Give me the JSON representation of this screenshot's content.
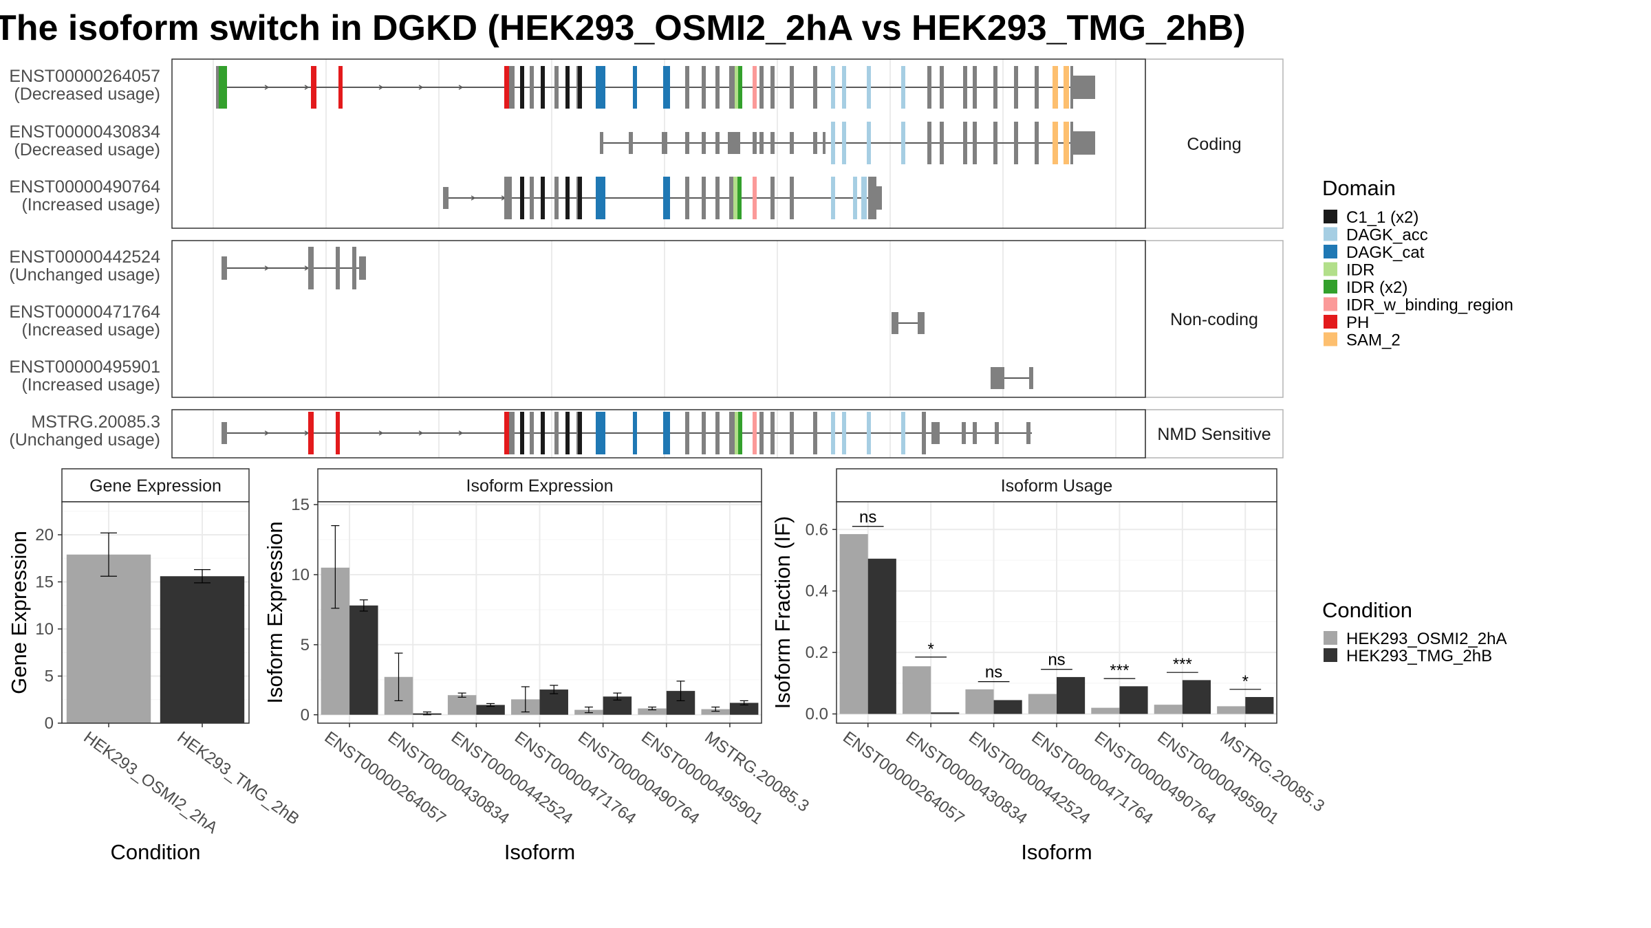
{
  "title": "The isoform switch in DGKD (HEK293_OSMI2_2hA vs HEK293_TMG_2hB)",
  "colors": {
    "C1_1 (x2)": "#1a1a1a",
    "DAGK_acc": "#a6cee3",
    "DAGK_cat": "#1f78b4",
    "IDR": "#b2df8a",
    "IDR (x2)": "#33a02c",
    "IDR_w_binding_region": "#fb9a99",
    "PH": "#e31a1c",
    "SAM_2": "#fdbf6f",
    "exon": "#808080",
    "cond1": "#a6a6a6",
    "cond2": "#333333"
  },
  "transcript_panels": [
    {
      "label": "Coding",
      "rows": [
        {
          "id": "ENST00000264057",
          "usage": "(Decreased usage)"
        },
        {
          "id": "ENST00000430834",
          "usage": "(Decreased usage)"
        },
        {
          "id": "ENST00000490764",
          "usage": "(Increased usage)"
        }
      ]
    },
    {
      "label": "Non-coding",
      "rows": [
        {
          "id": "ENST00000442524",
          "usage": "(Unchanged usage)"
        },
        {
          "id": "ENST00000471764",
          "usage": "(Increased usage)"
        },
        {
          "id": "ENST00000495901",
          "usage": "(Increased usage)"
        }
      ]
    },
    {
      "label": "NMD Sensitive",
      "rows": [
        {
          "id": "MSTRG.20085.3",
          "usage": "(Unchanged usage)"
        }
      ]
    }
  ],
  "domain_legend": {
    "title": "Domain",
    "items": [
      "C1_1 (x2)",
      "DAGK_acc",
      "DAGK_cat",
      "IDR",
      "IDR (x2)",
      "IDR_w_binding_region",
      "PH",
      "SAM_2"
    ]
  },
  "condition_legend": {
    "title": "Condition",
    "items": [
      "HEK293_OSMI2_2hA",
      "HEK293_TMG_2hB"
    ]
  },
  "chart_data": [
    {
      "type": "bar",
      "title": "Gene Expression",
      "xlabel": "Condition",
      "ylabel": "Gene Expression",
      "ylim": [
        0,
        23.5
      ],
      "yticks": [
        0,
        5,
        10,
        15,
        20
      ],
      "categories": [
        "HEK293_OSMI2_2hA",
        "HEK293_TMG_2hB"
      ],
      "values": [
        17.9,
        15.6
      ],
      "error_low": [
        15.6,
        14.9
      ],
      "error_high": [
        20.2,
        16.3
      ]
    },
    {
      "type": "bar",
      "title": "Isoform Expression",
      "xlabel": "Isoform",
      "ylabel": "Isoform Expression",
      "ylim": [
        -0.6,
        15.2
      ],
      "yticks": [
        0,
        5,
        10,
        15
      ],
      "categories": [
        "ENST00000264057",
        "ENST00000430834",
        "ENST00000442524",
        "ENST00000471764",
        "ENST00000490764",
        "ENST00000495901",
        "MSTRG.20085.3"
      ],
      "series": [
        {
          "name": "HEK293_OSMI2_2hA",
          "values": [
            10.5,
            2.7,
            1.4,
            1.1,
            0.35,
            0.45,
            0.4
          ],
          "error_low": [
            7.6,
            1.0,
            1.25,
            0.2,
            0.15,
            0.35,
            0.25
          ],
          "error_high": [
            13.5,
            4.4,
            1.55,
            2.0,
            0.55,
            0.55,
            0.55
          ]
        },
        {
          "name": "HEK293_TMG_2hB",
          "values": [
            7.8,
            0.1,
            0.7,
            1.8,
            1.3,
            1.7,
            0.85
          ],
          "error_low": [
            7.4,
            0.0,
            0.6,
            1.5,
            1.05,
            1.0,
            0.7
          ],
          "error_high": [
            8.2,
            0.2,
            0.8,
            2.1,
            1.55,
            2.4,
            1.0
          ]
        }
      ]
    },
    {
      "type": "bar",
      "title": "Isoform Usage",
      "xlabel": "Isoform",
      "ylabel": "Isoform Fraction (IF)",
      "ylim": [
        -0.03,
        0.69
      ],
      "yticks": [
        0.0,
        0.2,
        0.4,
        0.6
      ],
      "ytick_labels": [
        "0.0",
        "0.2",
        "0.4",
        "0.6"
      ],
      "categories": [
        "ENST00000264057",
        "ENST00000430834",
        "ENST00000442524",
        "ENST00000471764",
        "ENST00000490764",
        "ENST00000495901",
        "MSTRG.20085.3"
      ],
      "series": [
        {
          "name": "HEK293_OSMI2_2hA",
          "values": [
            0.585,
            0.155,
            0.08,
            0.065,
            0.02,
            0.03,
            0.025
          ]
        },
        {
          "name": "HEK293_TMG_2hB",
          "values": [
            0.505,
            0.005,
            0.045,
            0.12,
            0.09,
            0.11,
            0.055
          ]
        }
      ],
      "significance": [
        "ns",
        "*",
        "ns",
        "ns",
        "***",
        "***",
        "*"
      ],
      "sig_line_y": [
        0.61,
        0.185,
        0.105,
        0.145,
        0.115,
        0.135,
        0.08
      ]
    }
  ]
}
